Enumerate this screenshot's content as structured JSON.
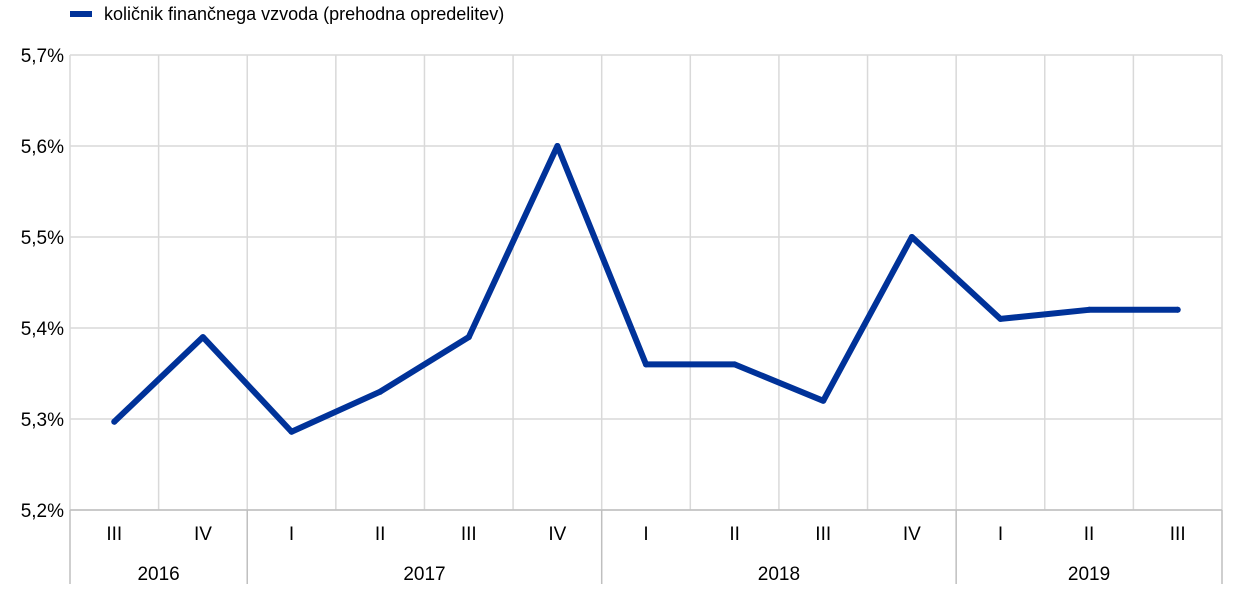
{
  "chart_data": {
    "type": "line",
    "x": [
      "III",
      "IV",
      "I",
      "II",
      "III",
      "IV",
      "I",
      "II",
      "III",
      "IV",
      "I",
      "II",
      "III"
    ],
    "groups": [
      {
        "label": "2016",
        "count": 2
      },
      {
        "label": "2017",
        "count": 4
      },
      {
        "label": "2018",
        "count": 4
      },
      {
        "label": "2019",
        "count": 3
      }
    ],
    "series": [
      {
        "name": "količnik finančnega vzvoda (prehodna opredelitev)",
        "color": "#003299",
        "values": [
          5.297,
          5.39,
          5.286,
          5.33,
          5.39,
          5.6,
          5.36,
          5.36,
          5.32,
          5.5,
          5.41,
          5.42,
          5.42
        ]
      }
    ],
    "yticks": [
      "5,2%",
      "5,3%",
      "5,4%",
      "5,5%",
      "5,6%",
      "5,7%"
    ],
    "ylim": [
      5.2,
      5.7
    ],
    "grid": true,
    "legend_position": "top-left"
  }
}
